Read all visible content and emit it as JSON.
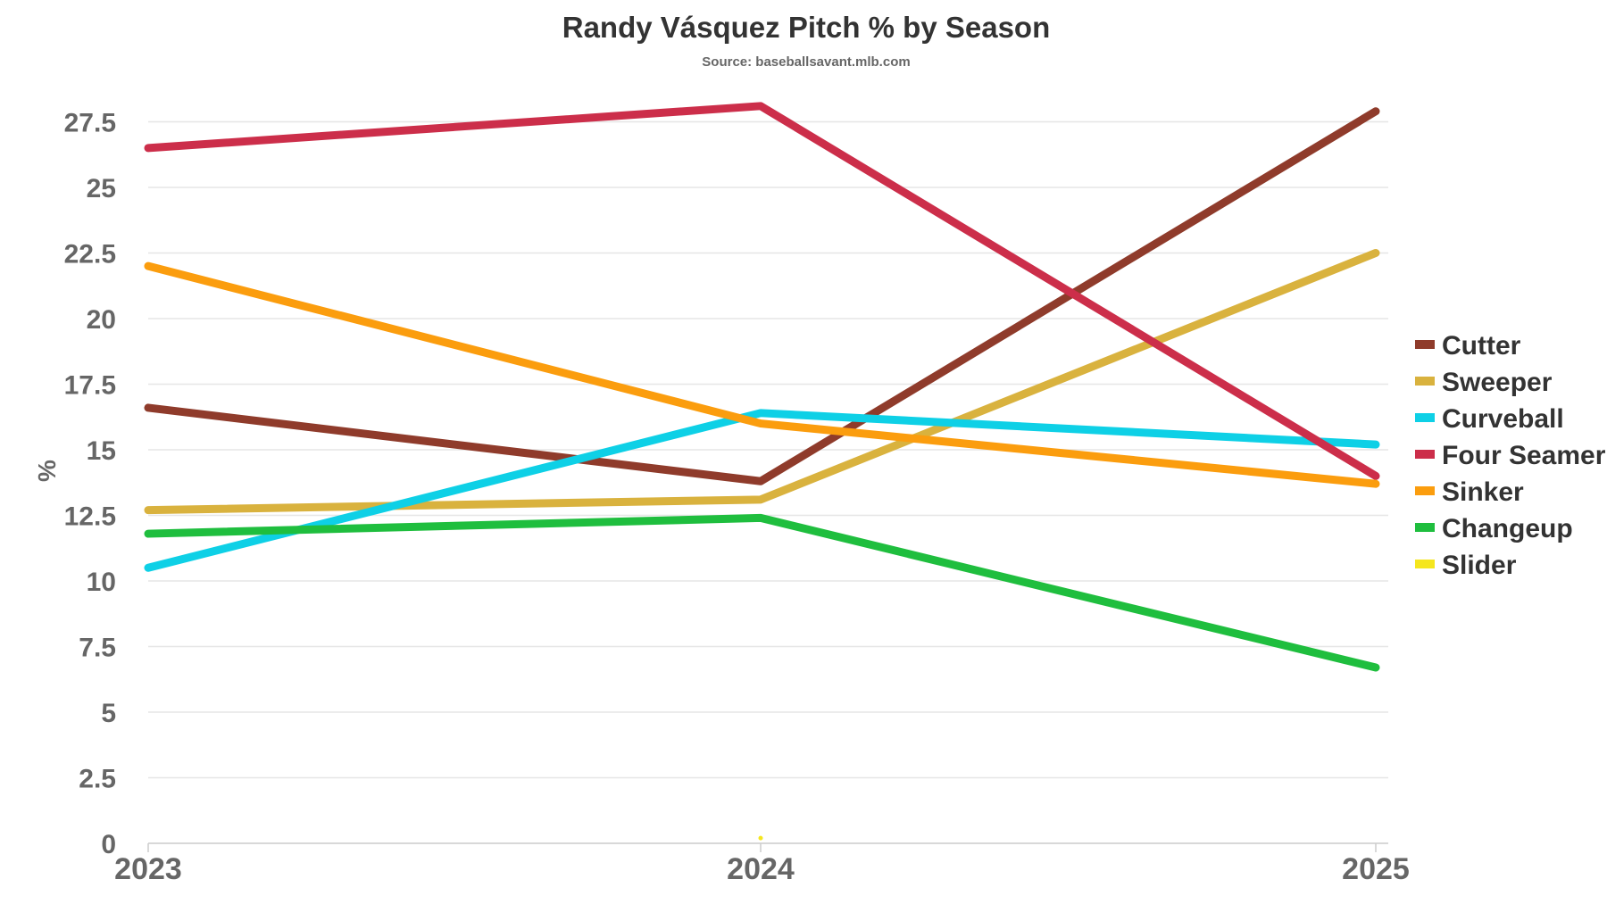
{
  "chart_data": {
    "type": "line",
    "title": "Randy Vásquez Pitch % by Season",
    "subtitle": "Source: baseballsavant.mlb.com",
    "xlabel": "",
    "ylabel": "%",
    "categories": [
      "2023",
      "2024",
      "2025"
    ],
    "ylim": [
      0,
      28.4
    ],
    "yticks": [
      0,
      2.5,
      5,
      7.5,
      10,
      12.5,
      15,
      17.5,
      20,
      22.5,
      25,
      27.5
    ],
    "ytick_labels": [
      "0",
      "2.5",
      "5",
      "7.5",
      "10",
      "12.5",
      "15",
      "17.5",
      "20",
      "22.5",
      "25",
      "27.5"
    ],
    "grid": true,
    "legend_position": "right",
    "series": [
      {
        "name": "Cutter",
        "color": "#8f3b2b",
        "values": [
          16.6,
          13.8,
          27.9
        ]
      },
      {
        "name": "Sweeper",
        "color": "#d9b23e",
        "values": [
          12.7,
          13.1,
          22.5
        ]
      },
      {
        "name": "Curveball",
        "color": "#0ed0e6",
        "values": [
          10.5,
          16.4,
          15.2
        ]
      },
      {
        "name": "Four Seamer",
        "color": "#cc2e4a",
        "values": [
          26.5,
          28.1,
          14.0
        ]
      },
      {
        "name": "Sinker",
        "color": "#fb9d0e",
        "values": [
          22.0,
          16.0,
          13.7
        ]
      },
      {
        "name": "Changeup",
        "color": "#1fbe3e",
        "values": [
          11.8,
          12.4,
          6.7
        ]
      },
      {
        "name": "Slider",
        "color": "#f5e61e",
        "values": [
          null,
          0.2,
          null
        ]
      }
    ]
  }
}
